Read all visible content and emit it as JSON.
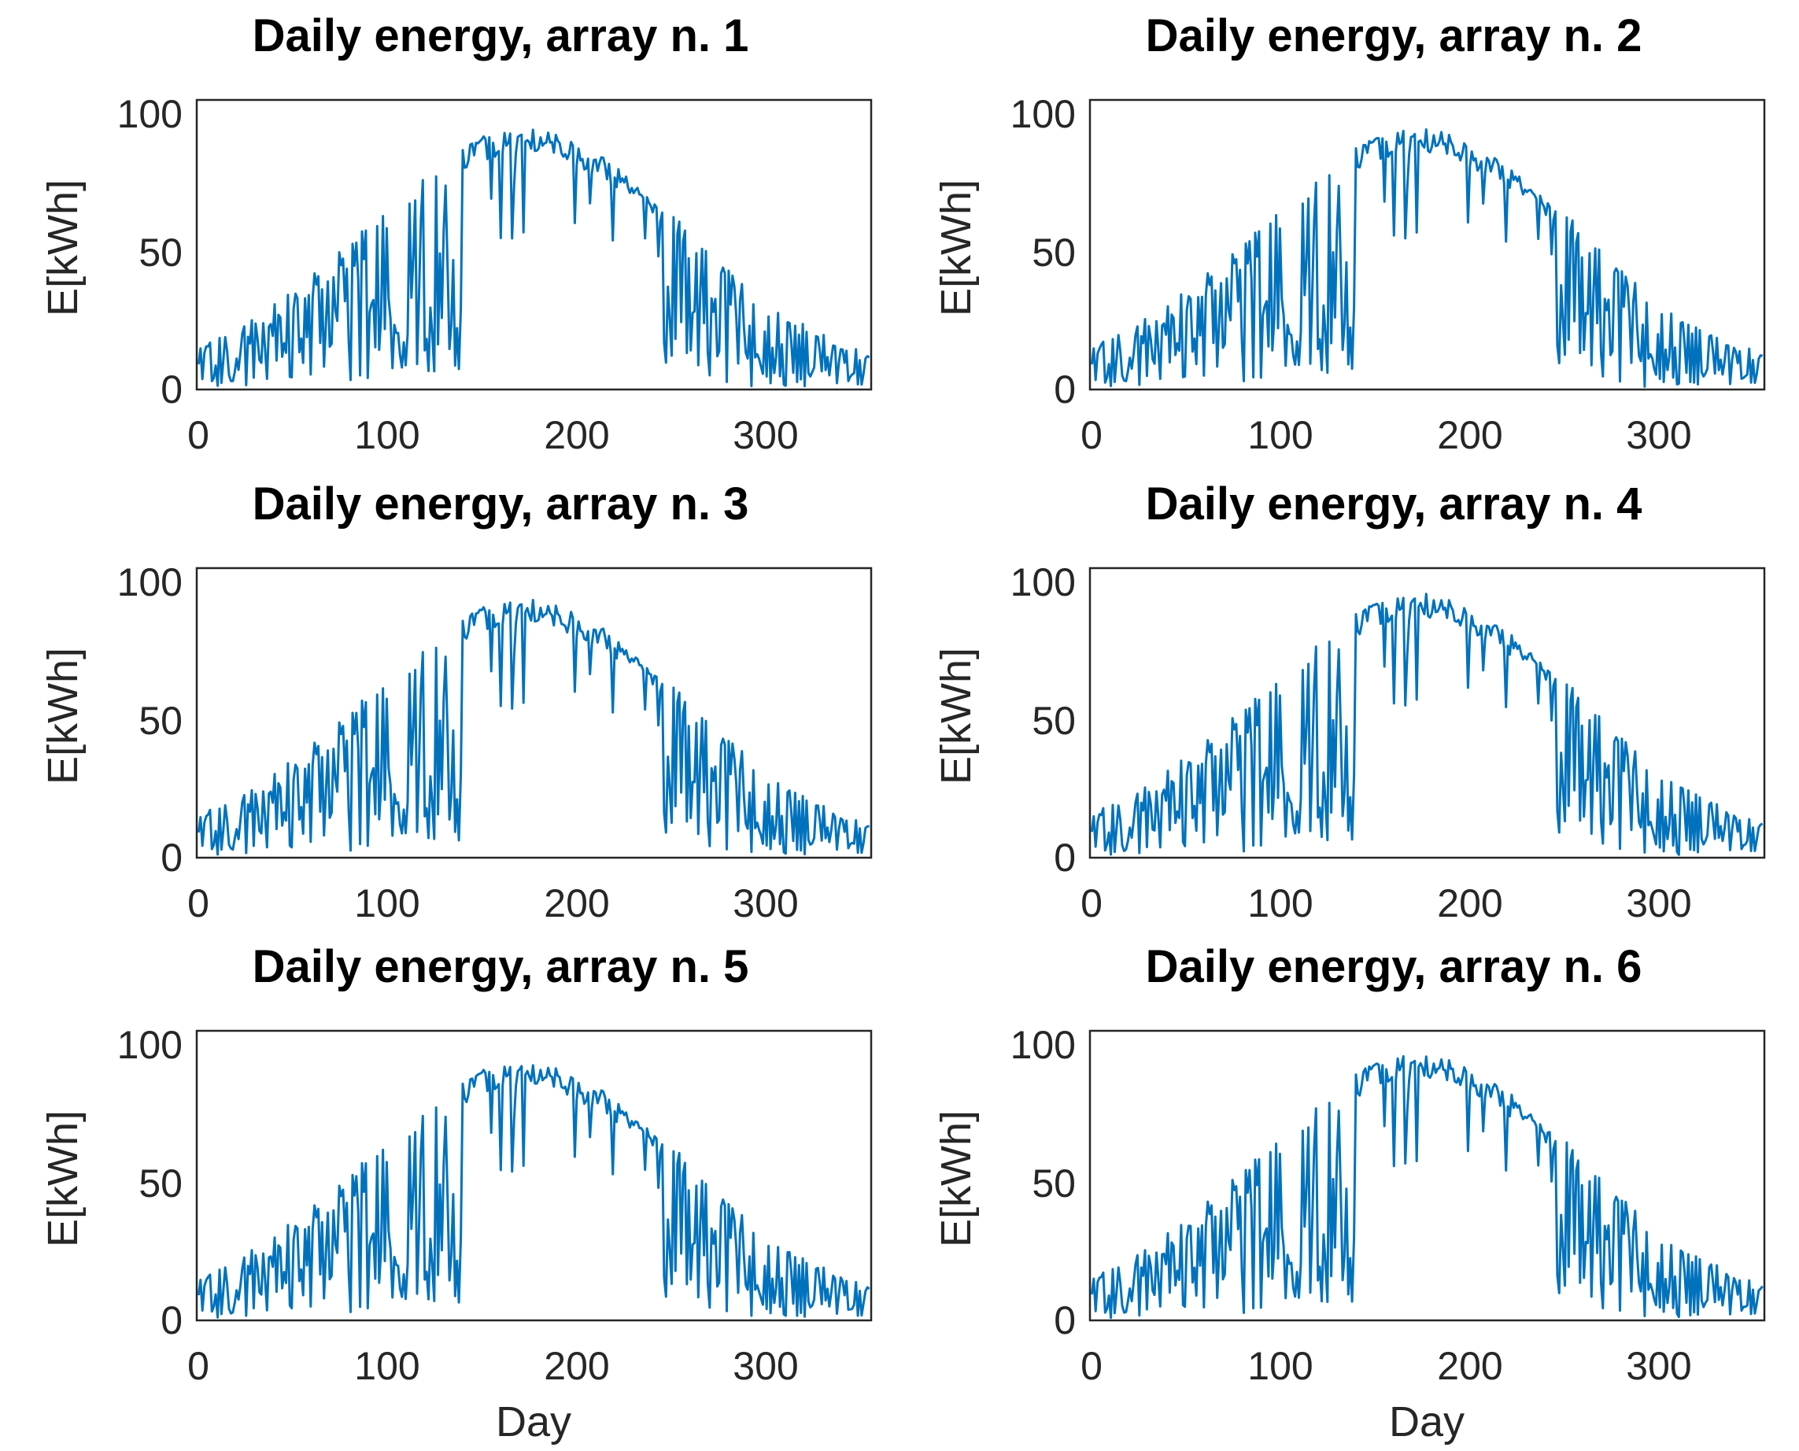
{
  "colors": {
    "series": "#0072BD",
    "axes": "#262626",
    "background": "#ffffff"
  },
  "chart_data": [
    {
      "type": "line",
      "title": "Daily energy, array n. 1",
      "xlabel": "",
      "ylabel": "E[kWh]",
      "xlim": [
        0,
        355
      ],
      "ylim": [
        0,
        100
      ],
      "xticks": [
        "0",
        "100",
        "200",
        "300"
      ],
      "yticks": [
        "0",
        "50",
        "100"
      ],
      "grid": false,
      "series": [
        {
          "name": "Daily energy, array n. 1",
          "x_start": 1,
          "x_step": 1,
          "peak": 94,
          "values": []
        }
      ]
    },
    {
      "type": "line",
      "title": "Daily energy, array n. 2",
      "xlabel": "",
      "ylabel": "E[kWh]",
      "xlim": [
        0,
        355
      ],
      "ylim": [
        0,
        100
      ],
      "xticks": [
        "0",
        "100",
        "200",
        "300"
      ],
      "yticks": [
        "0",
        "50",
        "100"
      ],
      "grid": false,
      "series": [
        {
          "name": "Daily energy, array n. 2",
          "x_start": 1,
          "x_step": 1,
          "peak": 94,
          "values": []
        }
      ]
    },
    {
      "type": "line",
      "title": "Daily energy, array n. 3",
      "xlabel": "",
      "ylabel": "E[kWh]",
      "xlim": [
        0,
        355
      ],
      "ylim": [
        0,
        100
      ],
      "xticks": [
        "0",
        "100",
        "200",
        "300"
      ],
      "yticks": [
        "0",
        "50",
        "100"
      ],
      "grid": false,
      "series": [
        {
          "name": "Daily energy, array n. 3",
          "x_start": 1,
          "x_step": 1,
          "peak": 93,
          "values": []
        }
      ]
    },
    {
      "type": "line",
      "title": "Daily energy, array n. 4",
      "xlabel": "",
      "ylabel": "E[kWh]",
      "xlim": [
        0,
        355
      ],
      "ylim": [
        0,
        100
      ],
      "xticks": [
        "0",
        "100",
        "200",
        "300"
      ],
      "yticks": [
        "0",
        "50",
        "100"
      ],
      "grid": false,
      "series": [
        {
          "name": "Daily energy, array n. 4",
          "x_start": 1,
          "x_step": 1,
          "peak": 95,
          "values": []
        }
      ]
    },
    {
      "type": "line",
      "title": "Daily energy, array n. 5",
      "xlabel": "Day",
      "ylabel": "E[kWh]",
      "xlim": [
        0,
        355
      ],
      "ylim": [
        0,
        100
      ],
      "xticks": [
        "0",
        "100",
        "200",
        "300"
      ],
      "yticks": [
        "0",
        "50",
        "100"
      ],
      "grid": false,
      "series": [
        {
          "name": "Daily energy, array n. 5",
          "x_start": 1,
          "x_step": 1,
          "peak": 93,
          "values": []
        }
      ]
    },
    {
      "type": "line",
      "title": "Daily energy, array n. 6",
      "xlabel": "Day",
      "ylabel": "E[kWh]",
      "xlim": [
        0,
        355
      ],
      "ylim": [
        0,
        100
      ],
      "xticks": [
        "0",
        "100",
        "200",
        "300"
      ],
      "yticks": [
        "0",
        "50",
        "100"
      ],
      "grid": false,
      "series": [
        {
          "name": "Daily energy, array n. 6",
          "x_start": 1,
          "x_step": 1,
          "peak": 96,
          "values": []
        }
      ]
    }
  ]
}
